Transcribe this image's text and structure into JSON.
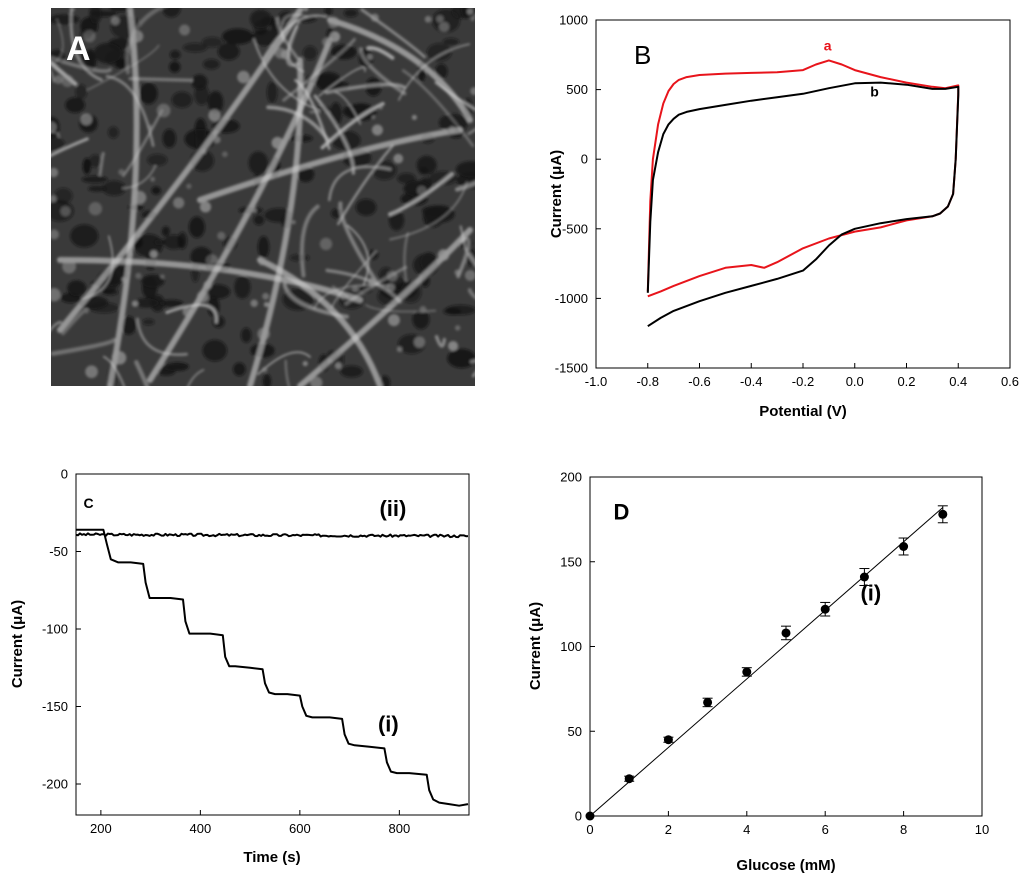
{
  "sem_panel": {
    "label": "A",
    "colors": {
      "background": "#3a3a3a",
      "fiber": "#bdbdbd",
      "pore": "#141414",
      "label": "#ffffff"
    }
  },
  "chart_data": [
    {
      "panel": "B",
      "type": "line",
      "title": "",
      "xlabel": "Potential (V)",
      "ylabel": "Current (μA)",
      "xlim": [
        -1.0,
        0.6
      ],
      "ylim": [
        -1500,
        1000
      ],
      "x_ticks": [
        "-1.0",
        "-0.8",
        "-0.6",
        "-0.4",
        "-0.2",
        "0.0",
        "0.2",
        "0.4",
        "0.6"
      ],
      "y_ticks": [
        "1000",
        "500",
        "0",
        "-500",
        "-1000",
        "-1500"
      ],
      "grid": false,
      "series": [
        {
          "name": "a",
          "color": "#e8141b",
          "x": [
            -0.8,
            -0.79,
            -0.78,
            -0.76,
            -0.74,
            -0.72,
            -0.7,
            -0.68,
            -0.65,
            -0.6,
            -0.5,
            -0.4,
            -0.3,
            -0.2,
            -0.15,
            -0.1,
            -0.05,
            0.0,
            0.1,
            0.2,
            0.3,
            0.35,
            0.4,
            0.4,
            0.39,
            0.38,
            0.36,
            0.33,
            0.3,
            0.2,
            0.1,
            0.0,
            -0.1,
            -0.2,
            -0.3,
            -0.35,
            -0.4,
            -0.5,
            -0.6,
            -0.7,
            -0.75,
            -0.8
          ],
          "y": [
            -950,
            -300,
            0,
            250,
            400,
            490,
            540,
            570,
            590,
            605,
            615,
            620,
            625,
            640,
            680,
            710,
            680,
            640,
            590,
            550,
            520,
            510,
            530,
            480,
            0,
            -250,
            -340,
            -390,
            -410,
            -440,
            -490,
            -520,
            -570,
            -640,
            -740,
            -780,
            -760,
            -780,
            -840,
            -910,
            -950,
            -985
          ]
        },
        {
          "name": "b",
          "color": "#000000",
          "x": [
            -0.8,
            -0.79,
            -0.78,
            -0.76,
            -0.74,
            -0.72,
            -0.7,
            -0.68,
            -0.65,
            -0.6,
            -0.5,
            -0.4,
            -0.3,
            -0.2,
            -0.1,
            0.0,
            0.1,
            0.2,
            0.3,
            0.35,
            0.4,
            0.4,
            0.39,
            0.38,
            0.36,
            0.33,
            0.3,
            0.2,
            0.1,
            0.0,
            -0.05,
            -0.1,
            -0.15,
            -0.2,
            -0.3,
            -0.4,
            -0.5,
            -0.6,
            -0.7,
            -0.75,
            -0.8
          ],
          "y": [
            -960,
            -450,
            -150,
            50,
            180,
            250,
            290,
            320,
            340,
            360,
            390,
            420,
            445,
            470,
            510,
            545,
            550,
            535,
            505,
            505,
            520,
            460,
            0,
            -250,
            -340,
            -390,
            -410,
            -430,
            -460,
            -500,
            -540,
            -620,
            -720,
            -800,
            -860,
            -910,
            -960,
            -1020,
            -1090,
            -1140,
            -1200
          ]
        }
      ],
      "curve_labels": [
        {
          "text": "a",
          "color": "#e8141b",
          "x": -0.12,
          "y": 780
        },
        {
          "text": "b",
          "color": "#000000",
          "x": 0.06,
          "y": 450
        }
      ]
    },
    {
      "panel": "C",
      "type": "line",
      "title": "",
      "xlabel": "Time (s)",
      "ylabel": "Current (μA)",
      "xlim": [
        150,
        940
      ],
      "ylim": [
        -220,
        0
      ],
      "x_ticks": [
        "200",
        "400",
        "600",
        "800"
      ],
      "y_ticks": [
        "0",
        "-50",
        "-100",
        "-150",
        "-200"
      ],
      "grid": false,
      "series": [
        {
          "name": "(i)",
          "color": "#000000",
          "x": [
            150,
            205,
            212,
            220,
            235,
            260,
            285,
            290,
            298,
            310,
            340,
            365,
            370,
            378,
            390,
            420,
            445,
            450,
            458,
            470,
            500,
            525,
            530,
            538,
            550,
            575,
            600,
            605,
            613,
            625,
            660,
            685,
            690,
            698,
            710,
            740,
            770,
            775,
            783,
            795,
            820,
            855,
            860,
            868,
            880,
            900,
            920,
            938
          ],
          "y": [
            -36,
            -36,
            -45,
            -55,
            -57,
            -57,
            -58,
            -70,
            -80,
            -80,
            -80,
            -81,
            -95,
            -103,
            -103,
            -103,
            -104,
            -118,
            -124,
            -124,
            -125,
            -126,
            -135,
            -141,
            -142,
            -142,
            -143,
            -150,
            -156,
            -157,
            -157,
            -158,
            -168,
            -174,
            -175,
            -176,
            -177,
            -186,
            -192,
            -193,
            -193,
            -194,
            -204,
            -210,
            -212,
            -213,
            -214,
            -213
          ]
        },
        {
          "name": "(ii)",
          "color": "#000000",
          "x": [
            150,
            938
          ],
          "y": [
            -39,
            -40
          ]
        }
      ],
      "annotations": [
        {
          "text": "(ii)",
          "x": 760,
          "y": -27
        },
        {
          "text": "(i)",
          "x": 757,
          "y": -166
        },
        {
          "text": "C",
          "x": 165,
          "y": -22
        }
      ]
    },
    {
      "panel": "D",
      "type": "scatter",
      "title": "",
      "xlabel": "Glucose (mM)",
      "ylabel": "Current (μA)",
      "xlim": [
        0,
        10
      ],
      "ylim": [
        0,
        200
      ],
      "x_ticks": [
        "0",
        "2",
        "4",
        "6",
        "8",
        "10"
      ],
      "y_ticks": [
        "200",
        "150",
        "100",
        "50",
        "0"
      ],
      "grid": false,
      "series": [
        {
          "name": "(i)",
          "color": "#000000",
          "x": [
            0,
            1,
            2,
            3,
            4,
            5,
            6,
            7,
            8,
            9
          ],
          "y": [
            0,
            22,
            45,
            67,
            85,
            108,
            122,
            141,
            159,
            178
          ],
          "error": [
            0,
            1.5,
            1.5,
            2.5,
            2.5,
            4,
            4,
            5,
            5,
            5
          ]
        }
      ],
      "fit_line": {
        "x": [
          0,
          9
        ],
        "y": [
          0,
          182
        ]
      },
      "annotations": [
        {
          "text": "(i)",
          "x": 6.9,
          "y": 127
        },
        {
          "text": "D",
          "x": 0.6,
          "y": 175
        }
      ]
    }
  ]
}
